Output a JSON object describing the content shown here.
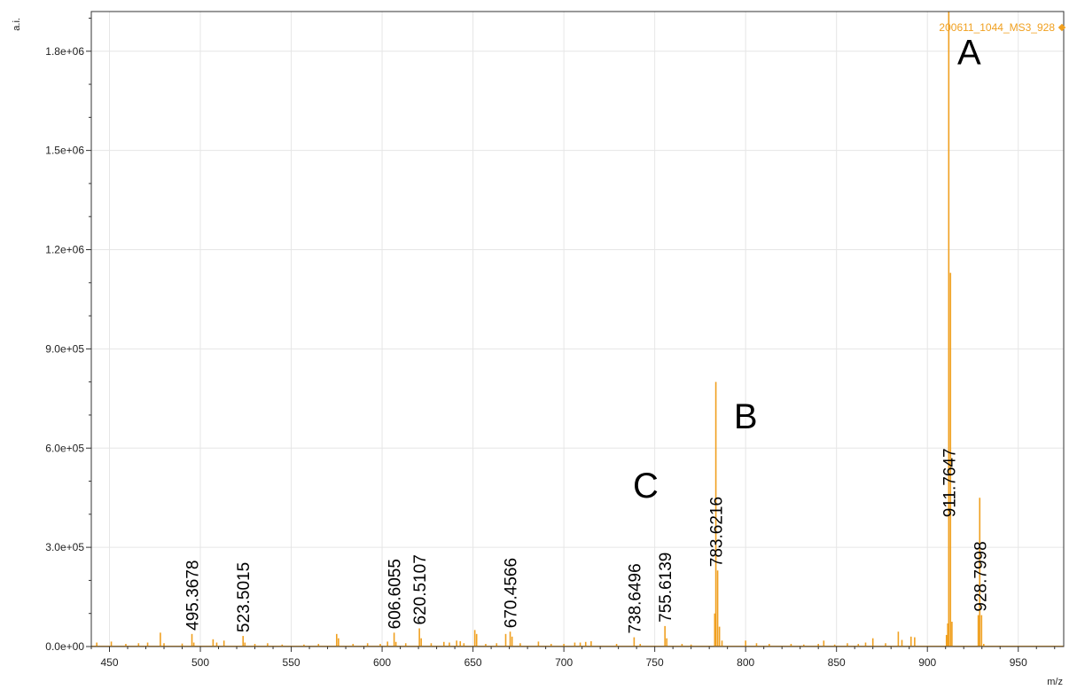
{
  "chart_data": {
    "type": "line",
    "title": "",
    "xlabel": "m/z",
    "ylabel": "a.i.",
    "xlim": [
      440,
      975
    ],
    "ylim": [
      0,
      1920000
    ],
    "x_ticks": [
      "450",
      "500",
      "550",
      "600",
      "650",
      "700",
      "750",
      "800",
      "850",
      "900",
      "950"
    ],
    "y_ticks": [
      "0.0e+00",
      "3.0e+05",
      "6.0e+05",
      "9.0e+05",
      "1.2e+06",
      "1.5e+06",
      "1.8e+06"
    ],
    "grid": true,
    "legend": "top-right",
    "series": [
      {
        "name": "200611_1044_MS3_928",
        "color": "#f0a020",
        "peaks": [
          {
            "x": 443,
            "y": 12000
          },
          {
            "x": 451,
            "y": 15000
          },
          {
            "x": 459,
            "y": 8000
          },
          {
            "x": 466,
            "y": 10000
          },
          {
            "x": 471,
            "y": 12000
          },
          {
            "x": 478,
            "y": 42000
          },
          {
            "x": 480,
            "y": 10000
          },
          {
            "x": 490,
            "y": 9000
          },
          {
            "x": 495.3678,
            "y": 38000
          },
          {
            "x": 496.4,
            "y": 12000
          },
          {
            "x": 507,
            "y": 22000
          },
          {
            "x": 509,
            "y": 12000
          },
          {
            "x": 513,
            "y": 18000
          },
          {
            "x": 523.5015,
            "y": 32000
          },
          {
            "x": 524.5,
            "y": 12000
          },
          {
            "x": 530,
            "y": 8000
          },
          {
            "x": 537,
            "y": 10000
          },
          {
            "x": 545,
            "y": 6000
          },
          {
            "x": 557,
            "y": 6000
          },
          {
            "x": 565,
            "y": 8000
          },
          {
            "x": 575,
            "y": 38000
          },
          {
            "x": 576,
            "y": 25000
          },
          {
            "x": 584,
            "y": 8000
          },
          {
            "x": 592,
            "y": 10000
          },
          {
            "x": 599,
            "y": 8000
          },
          {
            "x": 603,
            "y": 15000
          },
          {
            "x": 606.6055,
            "y": 42000
          },
          {
            "x": 607.6,
            "y": 14000
          },
          {
            "x": 613,
            "y": 10000
          },
          {
            "x": 620.5107,
            "y": 55000
          },
          {
            "x": 621.5,
            "y": 25000
          },
          {
            "x": 627,
            "y": 10000
          },
          {
            "x": 634,
            "y": 14000
          },
          {
            "x": 637,
            "y": 12000
          },
          {
            "x": 641,
            "y": 18000
          },
          {
            "x": 643,
            "y": 16000
          },
          {
            "x": 645,
            "y": 10000
          },
          {
            "x": 651,
            "y": 50000
          },
          {
            "x": 652,
            "y": 38000
          },
          {
            "x": 657,
            "y": 8000
          },
          {
            "x": 663,
            "y": 10000
          },
          {
            "x": 668,
            "y": 38000
          },
          {
            "x": 670.4566,
            "y": 45000
          },
          {
            "x": 671.5,
            "y": 30000
          },
          {
            "x": 676,
            "y": 10000
          },
          {
            "x": 686,
            "y": 15000
          },
          {
            "x": 693,
            "y": 8000
          },
          {
            "x": 700,
            "y": 8000
          },
          {
            "x": 706,
            "y": 12000
          },
          {
            "x": 709,
            "y": 12000
          },
          {
            "x": 712,
            "y": 14000
          },
          {
            "x": 715,
            "y": 16000
          },
          {
            "x": 729,
            "y": 8000
          },
          {
            "x": 738.6496,
            "y": 28000
          },
          {
            "x": 742,
            "y": 8000
          },
          {
            "x": 755.6139,
            "y": 62000
          },
          {
            "x": 756.6,
            "y": 25000
          },
          {
            "x": 765,
            "y": 8000
          },
          {
            "x": 770,
            "y": 6000
          },
          {
            "x": 783.0,
            "y": 100000
          },
          {
            "x": 783.6216,
            "y": 800000
          },
          {
            "x": 784.6,
            "y": 230000
          },
          {
            "x": 785.6,
            "y": 60000
          },
          {
            "x": 787,
            "y": 18000
          },
          {
            "x": 800,
            "y": 18000
          },
          {
            "x": 806,
            "y": 10000
          },
          {
            "x": 813,
            "y": 8000
          },
          {
            "x": 825,
            "y": 8000
          },
          {
            "x": 832,
            "y": 6000
          },
          {
            "x": 840,
            "y": 8000
          },
          {
            "x": 843,
            "y": 18000
          },
          {
            "x": 849,
            "y": 6000
          },
          {
            "x": 856,
            "y": 10000
          },
          {
            "x": 862,
            "y": 8000
          },
          {
            "x": 866,
            "y": 12000
          },
          {
            "x": 870,
            "y": 25000
          },
          {
            "x": 877,
            "y": 10000
          },
          {
            "x": 884,
            "y": 45000
          },
          {
            "x": 886,
            "y": 20000
          },
          {
            "x": 891,
            "y": 30000
          },
          {
            "x": 893,
            "y": 28000
          },
          {
            "x": 910.5,
            "y": 35000
          },
          {
            "x": 911.2,
            "y": 70000
          },
          {
            "x": 911.7647,
            "y": 1920000
          },
          {
            "x": 912.7,
            "y": 1130000
          },
          {
            "x": 913.5,
            "y": 75000
          },
          {
            "x": 928.0,
            "y": 95000
          },
          {
            "x": 928.7998,
            "y": 450000
          },
          {
            "x": 929.8,
            "y": 95000
          },
          {
            "x": 931,
            "y": 8000
          }
        ]
      }
    ],
    "peak_labels": [
      {
        "text": "495.3678",
        "x": 495.3678,
        "y": 38000
      },
      {
        "text": "523.5015",
        "x": 523.5015,
        "y": 32000
      },
      {
        "text": "606.6055",
        "x": 606.6055,
        "y": 42000
      },
      {
        "text": "620.5107",
        "x": 620.5107,
        "y": 55000
      },
      {
        "text": "670.4566",
        "x": 670.4566,
        "y": 45000
      },
      {
        "text": "738.6496",
        "x": 738.6496,
        "y": 28000
      },
      {
        "text": "755.6139",
        "x": 755.6139,
        "y": 62000
      },
      {
        "text": "783.6216",
        "x": 783.6216,
        "y": 230000
      },
      {
        "text": "911.7647",
        "x": 911.7647,
        "y": 380000
      },
      {
        "text": "928.7998",
        "x": 928.7998,
        "y": 95000
      }
    ],
    "annotations": [
      {
        "text": "A",
        "x": 923,
        "y": 1760000
      },
      {
        "text": "B",
        "x": 800,
        "y": 660000
      },
      {
        "text": "C",
        "x": 745,
        "y": 450000
      }
    ]
  }
}
